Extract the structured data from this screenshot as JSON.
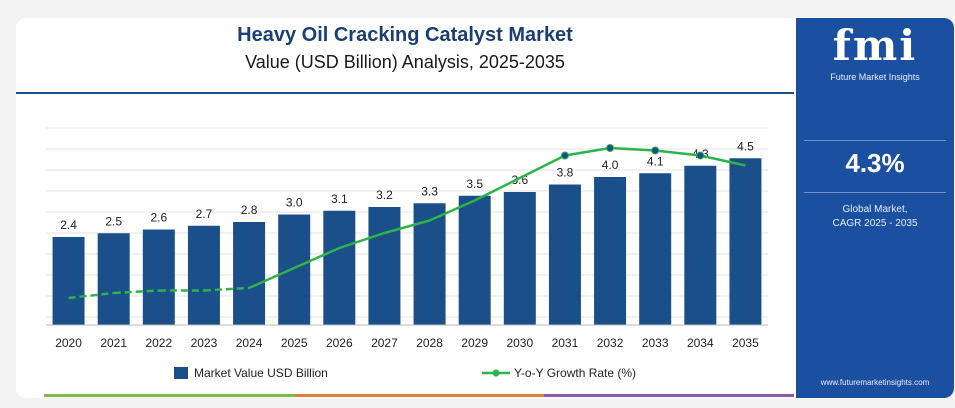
{
  "title": "Heavy Oil Cracking Catalyst Market",
  "subtitle": "Value (USD Billion) Analysis, 2025-2035",
  "colors": {
    "bar": "#1b4f8a",
    "line": "#2db34a",
    "panel": "#1b4fa0",
    "title": "#1b3f73"
  },
  "chart_data": {
    "type": "bar",
    "categories": [
      "2020",
      "2021",
      "2022",
      "2023",
      "2024",
      "2025",
      "2026",
      "2027",
      "2028",
      "2029",
      "2030",
      "2031",
      "2032",
      "2033",
      "2034",
      "2035"
    ],
    "series": [
      {
        "name": "Market Value USD Billion",
        "type": "bar",
        "values": [
          2.4,
          2.5,
          2.6,
          2.7,
          2.8,
          3.0,
          3.1,
          3.2,
          3.3,
          3.5,
          3.6,
          3.8,
          4.0,
          4.1,
          4.3,
          4.5
        ],
        "labels": [
          "2.4",
          "2.5",
          "2.6",
          "2.7",
          "2.8",
          "3.0",
          "3.1",
          "3.2",
          "3.3",
          "3.5",
          "3.6",
          "3.8",
          "4.0",
          "4.1",
          "4.3",
          "4.5"
        ]
      },
      {
        "name": "Y-o-Y Growth Rate (%)",
        "type": "line",
        "values": [
          3.6,
          3.8,
          3.9,
          3.9,
          4.0,
          4.8,
          5.6,
          6.2,
          6.7,
          7.5,
          8.4,
          9.3,
          9.6,
          9.5,
          9.3,
          8.9
        ],
        "markers_at": [
          11,
          12,
          13,
          14
        ]
      }
    ],
    "grid": true,
    "legend_position": "bottom"
  },
  "panel": {
    "logo": "fmi",
    "logo_tagline": "Future Market Insights",
    "cagr_value": "4.3%",
    "cagr_label_line1": "Global Market,",
    "cagr_label_line2": "CAGR 2025 - 2035",
    "website": "www.futuremarketinsights.com"
  }
}
